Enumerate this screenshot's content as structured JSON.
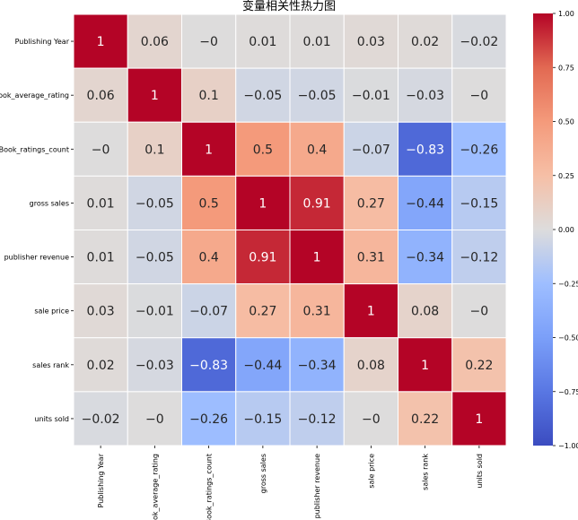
{
  "chart_data": {
    "type": "heatmap",
    "title": "变量相关性热力图",
    "variables": [
      "Publishing Year",
      "Book_average_rating",
      "Book_ratings_count",
      "gross sales",
      "publisher revenue",
      "sale price",
      "sales rank",
      "units sold"
    ],
    "values": [
      [
        1,
        0.06,
        -0.0,
        0.01,
        0.01,
        0.03,
        0.02,
        -0.02
      ],
      [
        0.06,
        1,
        0.1,
        -0.05,
        -0.05,
        -0.01,
        -0.03,
        -0.0
      ],
      [
        -0.0,
        0.1,
        1,
        0.5,
        0.4,
        -0.07,
        -0.83,
        -0.26
      ],
      [
        0.01,
        -0.05,
        0.5,
        1,
        0.91,
        0.27,
        -0.44,
        -0.15
      ],
      [
        0.01,
        -0.05,
        0.4,
        0.91,
        1,
        0.31,
        -0.34,
        -0.12
      ],
      [
        0.03,
        -0.01,
        -0.07,
        0.27,
        0.31,
        1,
        0.08,
        -0.0
      ],
      [
        0.02,
        -0.03,
        -0.83,
        -0.44,
        -0.34,
        0.08,
        1,
        0.22
      ],
      [
        -0.02,
        -0.0,
        -0.26,
        -0.15,
        -0.12,
        -0.0,
        0.22,
        1
      ]
    ],
    "labels": [
      [
        "1",
        "0.06",
        "−0",
        "0.01",
        "0.01",
        "0.03",
        "0.02",
        "−0.02"
      ],
      [
        "0.06",
        "1",
        "0.1",
        "−0.05",
        "−0.05",
        "−0.01",
        "−0.03",
        "−0"
      ],
      [
        "−0",
        "0.1",
        "1",
        "0.5",
        "0.4",
        "−0.07",
        "−0.83",
        "−0.26"
      ],
      [
        "0.01",
        "−0.05",
        "0.5",
        "1",
        "0.91",
        "0.27",
        "−0.44",
        "−0.15"
      ],
      [
        "0.01",
        "−0.05",
        "0.4",
        "0.91",
        "1",
        "0.31",
        "−0.34",
        "−0.12"
      ],
      [
        "0.03",
        "−0.01",
        "−0.07",
        "0.27",
        "0.31",
        "1",
        "0.08",
        "−0"
      ],
      [
        "0.02",
        "−0.03",
        "−0.83",
        "−0.44",
        "−0.34",
        "0.08",
        "1",
        "0.22"
      ],
      [
        "−0.02",
        "−0",
        "−0.26",
        "−0.15",
        "−0.12",
        "−0",
        "0.22",
        "1"
      ]
    ],
    "colormap": "coolwarm",
    "vmin": -1,
    "vmax": 1,
    "colorbar_ticks": [
      "1.00",
      "0.75",
      "0.50",
      "0.25",
      "0.00",
      "−0.25",
      "−0.50",
      "−0.75",
      "−1.00"
    ],
    "colorbar_tick_values": [
      1.0,
      0.75,
      0.5,
      0.25,
      0.0,
      -0.25,
      -0.5,
      -0.75,
      -1.0
    ]
  }
}
